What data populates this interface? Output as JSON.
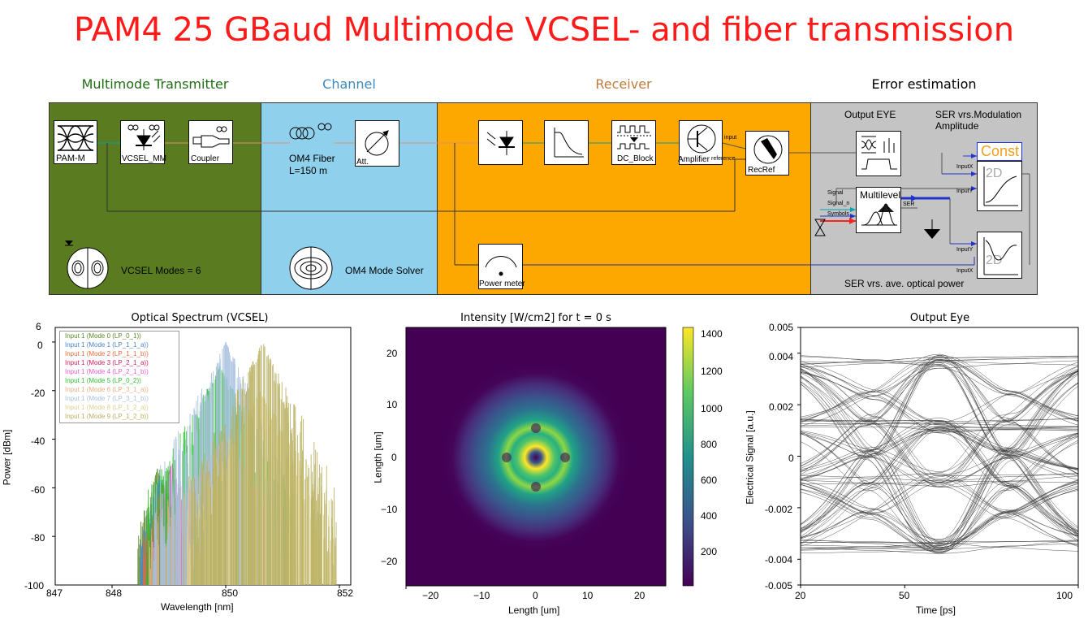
{
  "title": "PAM4 25 GBaud Multimode VCSEL- and fiber transmission",
  "sections": {
    "transmitter": "Multimode Transmitter",
    "channel": "Channel",
    "receiver": "Receiver",
    "error": "Error estimation"
  },
  "colors": {
    "transmitter_bg": "#5a7b1f",
    "channel_bg": "#8fd0ec",
    "receiver_bg": "#fca800",
    "error_bg": "#c4c4c4",
    "transmitter_head": "#1e6d13",
    "channel_head": "#3c89bb",
    "receiver_head": "#c27a3c",
    "title": "#ff1a1a"
  },
  "blocks": {
    "pam": "PAM-M",
    "vcsel": "VCSEL_MM",
    "coupler": "Coupler",
    "fiber": "OM4 Fiber",
    "fiber_length": "L=150 m",
    "att": "Att.",
    "dc_block": "DC_Block",
    "amplifier": "Amplifier",
    "recref": "RecRef",
    "recref_input": "input",
    "recref_reference": "reference",
    "power_meter": "Power meter",
    "vcsel_modes": "VCSEL Modes = 6",
    "mode_solver": "OM4 Mode Solver",
    "output_eye": "Output EYE",
    "ser_mod": "SER vrs.Modulation Amplitude",
    "const": "Const",
    "twod": "2D",
    "multilevel": "Multilevel",
    "signal": "Signal",
    "signal_n": "Signal_n",
    "symbols": "Symbols",
    "ser": "SER",
    "inputx": "InputX",
    "inputy": "InputY",
    "ser_power": "SER vrs. ave. optical power"
  },
  "spectrum": {
    "title": "Optical Spectrum (VCSEL)",
    "xlabel": "Wavelength [nm]",
    "ylabel": "Power [dBm]",
    "xticks": [
      "847",
      "848",
      "850",
      "852"
    ],
    "yticks": [
      "6",
      "0",
      "-20",
      "-40",
      "-60",
      "-80",
      "-100"
    ]
  },
  "intensity": {
    "title": "Intensity [W/cm2] for t = 0 s",
    "xlabel": "Length [um]",
    "ylabel": "Length [um]",
    "xticks": [
      "−20",
      "−10",
      "0",
      "10",
      "20"
    ],
    "yticks": [
      "20",
      "10",
      "0",
      "−10",
      "−20"
    ],
    "cbticks": [
      "1400",
      "1200",
      "1000",
      "800",
      "600",
      "400",
      "200"
    ]
  },
  "eye": {
    "title": "Output Eye",
    "xlabel": "Time [ps]",
    "ylabel": "Electrical Signal [a.u.]",
    "xticks": [
      "20",
      "50",
      "100"
    ],
    "yticks": [
      "0.005",
      "0.004",
      "0.002",
      "0",
      "-0.002",
      "-0.004",
      "-0.005"
    ]
  },
  "chart_data": [
    {
      "type": "line",
      "title": "Optical Spectrum (VCSEL)",
      "xlabel": "Wavelength [nm]",
      "ylabel": "Power [dBm]",
      "xlim": [
        847,
        852.2
      ],
      "ylim": [
        -100,
        6
      ],
      "legend_position": "top-left",
      "series": [
        {
          "name": "Input 1 (Mode 0 (LP_0_1))",
          "color": "#5c8a2c",
          "peak_nm": 848.8,
          "peak_dbm": -52
        },
        {
          "name": "Input 1 (Mode 1 (LP_1_1_a))",
          "color": "#4a86c8",
          "peak_nm": 848.85,
          "peak_dbm": -55
        },
        {
          "name": "Input 1 (Mode 2 (LP_1_1_b))",
          "color": "#e06c3c",
          "peak_nm": 848.9,
          "peak_dbm": -58
        },
        {
          "name": "Input 1 (Mode 3 (LP_2_1_a))",
          "color": "#d0205a",
          "peak_nm": 848.95,
          "peak_dbm": -62
        },
        {
          "name": "Input 1 (Mode 4 (LP_2_1_b))",
          "color": "#e060d0",
          "peak_nm": 849.05,
          "peak_dbm": -49
        },
        {
          "name": "Input 1 (Mode 5 (LP_0_2))",
          "color": "#30c030",
          "peak_nm": 849.9,
          "peak_dbm": -10
        },
        {
          "name": "Input 1 (Mode 6 (LP_3_1_a))",
          "color": "#e8b080",
          "peak_nm": 849.95,
          "peak_dbm": -40
        },
        {
          "name": "Input 1 (Mode 7 (LP_3_1_b))",
          "color": "#a8c0e0",
          "peak_nm": 850.0,
          "peak_dbm": 0
        },
        {
          "name": "Input 1 (Mode 8 (LP_1_2_a))",
          "color": "#e0d090",
          "peak_nm": 850.6,
          "peak_dbm": -20
        },
        {
          "name": "Input 1 (Mode 9 (LP_1_2_b))",
          "color": "#b8b060",
          "peak_nm": 850.65,
          "peak_dbm": 0
        }
      ]
    },
    {
      "type": "heatmap",
      "title": "Intensity [W/cm2] for t = 0 s",
      "xlabel": "Length [um]",
      "ylabel": "Length [um]",
      "xlim": [
        -25,
        25
      ],
      "ylim": [
        -25,
        25
      ],
      "colorbar_range": [
        0,
        1450
      ],
      "colormap": "viridis"
    },
    {
      "type": "line",
      "title": "Output Eye",
      "xlabel": "Time [ps]",
      "ylabel": "Electrical Signal [a.u.]",
      "xlim": [
        20,
        100
      ],
      "ylim": [
        -0.005,
        0.005
      ],
      "levels": [
        0.0037,
        0.0012,
        -0.0009,
        -0.0035
      ]
    }
  ]
}
